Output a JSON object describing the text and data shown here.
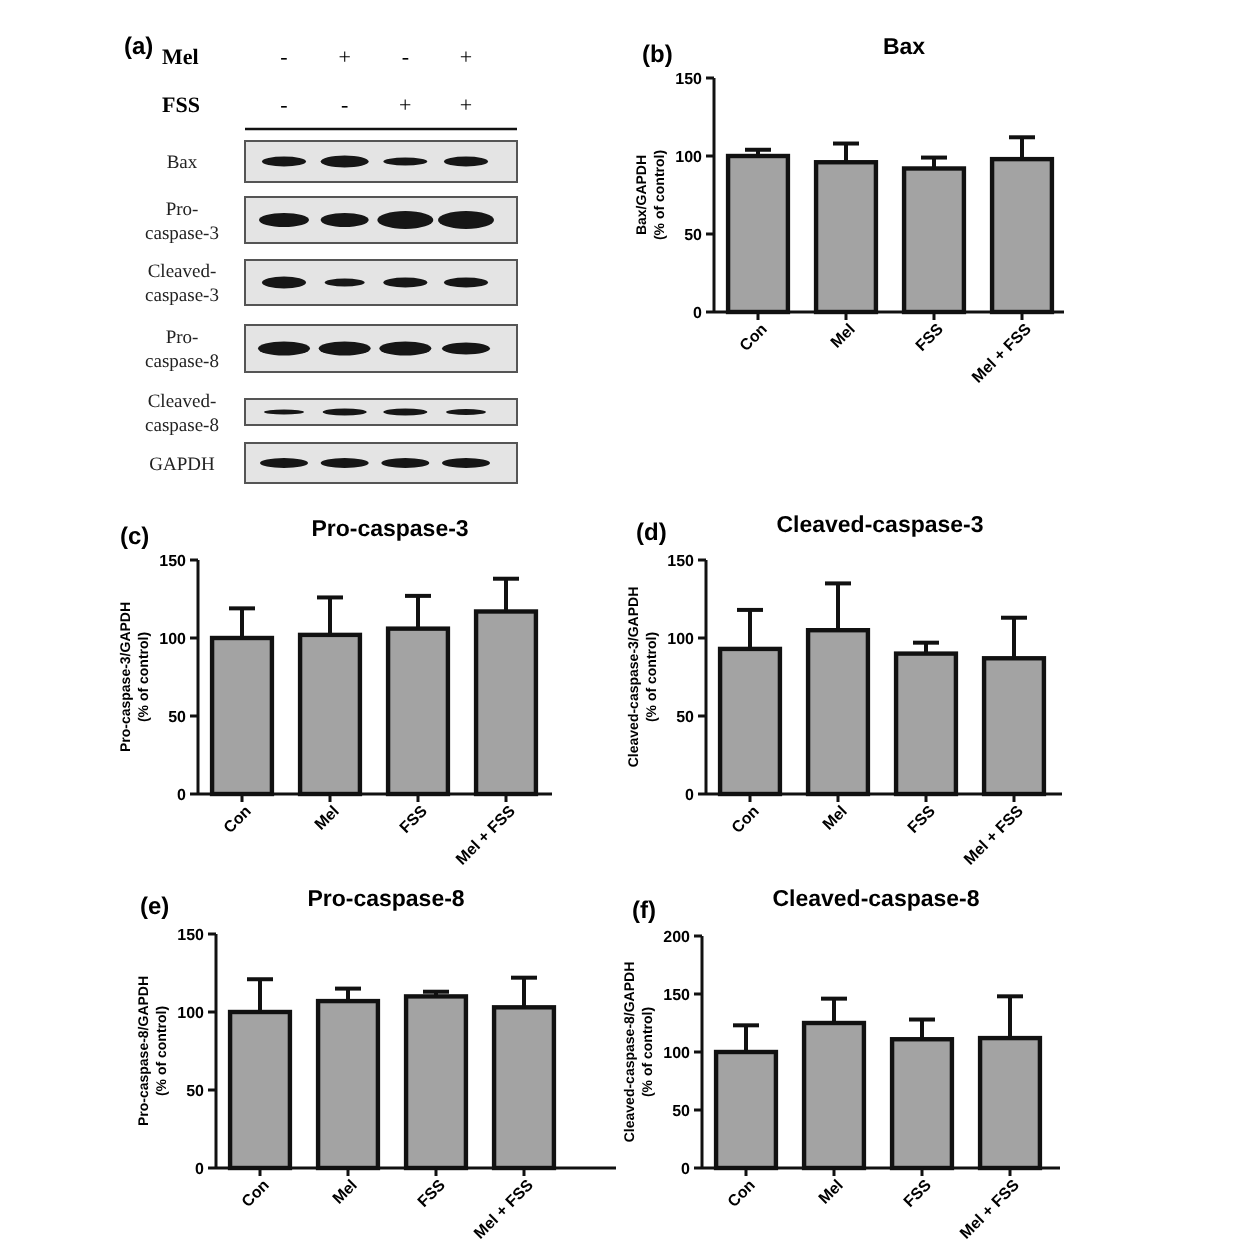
{
  "chart_data": [
    {
      "type": "other",
      "annotations": [
        "(a)",
        "Bax",
        "Pro-caspase-3",
        "Cleaved-caspase-3",
        "Pro-caspase-8",
        "Cleaved-caspase-8",
        "GAPDH"
      ],
      "categories": [
        null,
        null,
        null,
        null
      ],
      "y_categories": [
        "Mel",
        "FSS"
      ],
      "cell_labels": [
        [
          "-",
          "+",
          "-",
          "+"
        ],
        [
          "-",
          "-",
          "+",
          "+"
        ]
      ]
    },
    {
      "type": "bar",
      "title": "Bax",
      "ylabel": "Bax/GAPDH\n(% of control)",
      "annotations": [
        "(b)"
      ],
      "categories": [
        "Con",
        "Mel",
        "FSS",
        "Mel + FSS"
      ],
      "values": [
        100,
        96,
        92,
        98
      ],
      "errors": [
        [
          100,
          104
        ],
        [
          96,
          108
        ],
        [
          92,
          99
        ],
        [
          98,
          112
        ]
      ],
      "color": "#a3a3a3",
      "ylim": [
        0,
        150
      ],
      "yticks": [
        0,
        50,
        100,
        150
      ]
    },
    {
      "type": "bar",
      "title": "Pro-caspase-3",
      "ylabel": "Pro-caspase-3/GAPDH\n(% of control)",
      "annotations": [
        "(c)"
      ],
      "categories": [
        "Con",
        "Mel",
        "FSS",
        "Mel + FSS"
      ],
      "values": [
        100,
        102,
        106,
        117
      ],
      "errors": [
        [
          100,
          119
        ],
        [
          102,
          126
        ],
        [
          106,
          127
        ],
        [
          117,
          138
        ]
      ],
      "color": "#a3a3a3",
      "ylim": [
        0,
        150
      ],
      "yticks": [
        0,
        50,
        100,
        150
      ]
    },
    {
      "type": "bar",
      "title": "Cleaved-caspase-3",
      "ylabel": "Cleaved-caspase-3/GAPDH\n(% of control)",
      "annotations": [
        "(d)"
      ],
      "categories": [
        "Con",
        "Mel",
        "FSS",
        "Mel + FSS"
      ],
      "values": [
        93,
        105,
        90,
        87
      ],
      "errors": [
        [
          93,
          118
        ],
        [
          105,
          135
        ],
        [
          90,
          97
        ],
        [
          87,
          113
        ]
      ],
      "color": "#a3a3a3",
      "ylim": [
        0,
        150
      ],
      "yticks": [
        0,
        50,
        100,
        150
      ]
    },
    {
      "type": "bar",
      "title": "Pro-caspase-8",
      "ylabel": "Pro-caspase-8/GAPDH\n(% of control)",
      "annotations": [
        "(e)"
      ],
      "categories": [
        "Con",
        "Mel",
        "FSS",
        "Mel + FSS"
      ],
      "values": [
        100,
        107,
        110,
        103
      ],
      "errors": [
        [
          100,
          121
        ],
        [
          107,
          115
        ],
        [
          110,
          113
        ],
        [
          103,
          122
        ]
      ],
      "color": "#a3a3a3",
      "ylim": [
        0,
        150
      ],
      "yticks": [
        0,
        50,
        100,
        150
      ]
    },
    {
      "type": "bar",
      "title": "Cleaved-caspase-8",
      "ylabel": "Cleaved-caspase-8/GAPDH\n(% of control)",
      "annotations": [
        "(f)"
      ],
      "categories": [
        "Con",
        "Mel",
        "FSS",
        "Mel + FSS"
      ],
      "values": [
        100,
        125,
        111,
        112
      ],
      "errors": [
        [
          100,
          123
        ],
        [
          125,
          146
        ],
        [
          111,
          128
        ],
        [
          112,
          148
        ]
      ],
      "color": "#a3a3a3",
      "ylim": [
        0,
        200
      ],
      "yticks": [
        0,
        50,
        100,
        150,
        200
      ]
    }
  ]
}
